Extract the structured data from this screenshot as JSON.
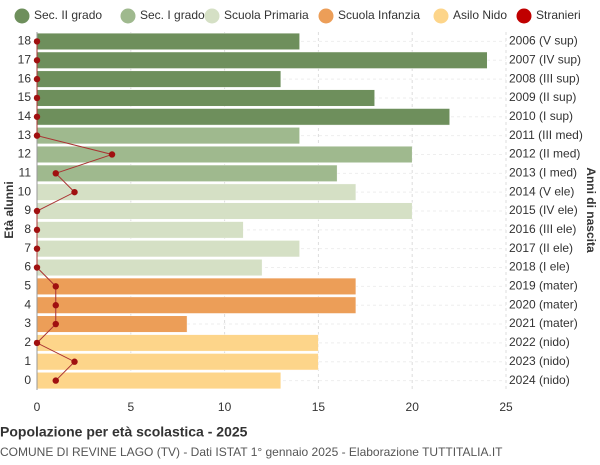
{
  "chart_data": {
    "type": "bar",
    "title": "Popolazione per età scolastica - 2025",
    "subtitle": "COMUNE DI REVINE LAGO (TV) - Dati ISTAT 1° gennaio 2025 - Elaborazione TUTTITALIA.IT",
    "y_label": "Età alunni",
    "y2_label": "Anni di nascita",
    "categories": [
      "18",
      "17",
      "16",
      "15",
      "14",
      "13",
      "12",
      "11",
      "10",
      "9",
      "8",
      "7",
      "6",
      "5",
      "4",
      "3",
      "2",
      "1",
      "0"
    ],
    "right_labels": [
      "2006 (V sup)",
      "2007 (IV sup)",
      "2008 (III sup)",
      "2009 (II sup)",
      "2010 (I sup)",
      "2011 (III med)",
      "2012 (II med)",
      "2013 (I med)",
      "2014 (V ele)",
      "2015 (IV ele)",
      "2016 (III ele)",
      "2017 (II ele)",
      "2018 (I ele)",
      "2019 (mater)",
      "2020 (mater)",
      "2021 (mater)",
      "2022 (nido)",
      "2023 (nido)",
      "2024 (nido)"
    ],
    "series": [
      {
        "name": "Sec. II grado",
        "color": "#6e8f5c",
        "values": [
          14,
          24,
          13,
          18,
          22,
          null,
          null,
          null,
          null,
          null,
          null,
          null,
          null,
          null,
          null,
          null,
          null,
          null,
          null
        ]
      },
      {
        "name": "Sec. I grado",
        "color": "#9fb98e",
        "values": [
          null,
          null,
          null,
          null,
          null,
          14,
          20,
          16,
          null,
          null,
          null,
          null,
          null,
          null,
          null,
          null,
          null,
          null,
          null
        ]
      },
      {
        "name": "Scuola Primaria",
        "color": "#d5e0c5",
        "values": [
          null,
          null,
          null,
          null,
          null,
          null,
          null,
          null,
          17,
          20,
          11,
          14,
          12,
          null,
          null,
          null,
          null,
          null,
          null
        ]
      },
      {
        "name": "Scuola Infanzia",
        "color": "#ec9e58",
        "values": [
          null,
          null,
          null,
          null,
          null,
          null,
          null,
          null,
          null,
          null,
          null,
          null,
          null,
          17,
          17,
          8,
          null,
          null,
          null
        ]
      },
      {
        "name": "Asilo Nido",
        "color": "#fdd58a",
        "values": [
          null,
          null,
          null,
          null,
          null,
          null,
          null,
          null,
          null,
          null,
          null,
          null,
          null,
          null,
          null,
          null,
          15,
          15,
          13
        ]
      },
      {
        "name": "Stranieri",
        "color": "#c00000",
        "type": "line",
        "values": [
          0,
          0,
          0,
          0,
          0,
          0,
          4,
          1,
          2,
          0,
          0,
          0,
          0,
          1,
          1,
          1,
          0,
          2,
          1
        ]
      }
    ],
    "xlim": [
      0,
      25
    ],
    "xticks": [
      0,
      5,
      10,
      15,
      20,
      25
    ],
    "grid": true
  }
}
